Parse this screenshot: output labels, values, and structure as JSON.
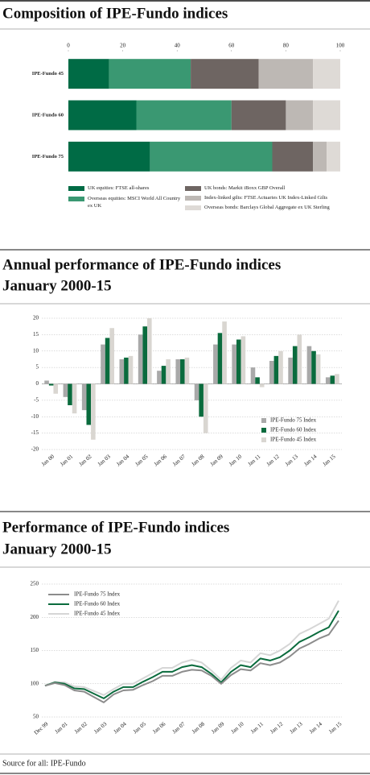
{
  "chart_data": [
    {
      "type": "bar",
      "orientation": "horizontal",
      "stacked": true,
      "title": "Composition of IPE-Fundo indices",
      "categories": [
        "IPE-Fundo 45",
        "IPE-Fundo 60",
        "IPE-Fundo 75"
      ],
      "series": [
        {
          "name": "UK equities: FTSE all-shares",
          "color": "#006b45",
          "values": [
            15,
            25,
            30
          ]
        },
        {
          "name": "Overseas equities: MSCI World All Country ex UK",
          "color": "#3a9872",
          "values": [
            30,
            35,
            45
          ]
        },
        {
          "name": "UK bonds: Markit iBoxx GBP Overall",
          "color": "#6e6562",
          "values": [
            25,
            20,
            15
          ]
        },
        {
          "name": "Index-linked gilts: FTSE Actuaries UK Index-Linked Gilts",
          "color": "#bdb8b4",
          "values": [
            20,
            10,
            5
          ]
        },
        {
          "name": "Overseas bonds: Barclays Global Aggregate ex UK Sterling",
          "color": "#dedad6",
          "values": [
            10,
            10,
            5
          ]
        }
      ],
      "xlim": [
        0,
        100
      ],
      "xticks": [
        0,
        20,
        40,
        60,
        80,
        100
      ]
    },
    {
      "type": "bar",
      "orientation": "vertical",
      "stacked": false,
      "title": "Annual performance of IPE-Fundo indices",
      "subtitle": "January 2000-15",
      "categories": [
        "Jan 00",
        "Jan 01",
        "Jan 02",
        "Jan 03",
        "Jan 04",
        "Jan 05",
        "Jan 06",
        "Jan 07",
        "Jan 08",
        "Jan 09",
        "Jan 10",
        "Jan 11",
        "Jan 12",
        "Jan 13",
        "Jan 14",
        "Jan 15"
      ],
      "series": [
        {
          "name": "IPE-Fundo 75 Index",
          "color": "#a9a9a9",
          "values": [
            1,
            -4,
            -8,
            12,
            7.5,
            15,
            4,
            7.5,
            -5,
            12,
            12,
            5,
            7,
            8,
            11.5,
            2
          ]
        },
        {
          "name": "IPE-Fundo 60 Index",
          "color": "#0a6b3d",
          "values": [
            -0.5,
            -6.5,
            -12.5,
            14,
            8,
            17.5,
            5.5,
            7.5,
            -10,
            15.5,
            13.5,
            2,
            8.5,
            11.5,
            10,
            2.5
          ]
        },
        {
          "name": "IPE-Fundo 45 Index",
          "color": "#d9d6d1",
          "values": [
            -3,
            -9,
            -17,
            17,
            8.5,
            20,
            7.5,
            8,
            -15,
            19,
            14.5,
            -1,
            10,
            15,
            9,
            3
          ]
        }
      ],
      "ylim": [
        -20,
        20
      ],
      "yticks": [
        -20,
        -15,
        -10,
        -5,
        0,
        5,
        10,
        15,
        20
      ],
      "grid": true
    },
    {
      "type": "line",
      "title": "Performance of IPE-Fundo indices",
      "subtitle": "January 2000-15",
      "categories": [
        "Dec 99",
        null,
        "Jan 01",
        null,
        "Jan 02",
        null,
        "Jan 03",
        null,
        "Jan 04",
        null,
        "Jan 05",
        null,
        "Jan 06",
        null,
        "Jan 07",
        null,
        "Jan 08",
        null,
        "Jan 09",
        null,
        "Jan 10",
        null,
        "Jan 11",
        null,
        "Jan 12",
        null,
        "Jan 13",
        null,
        "Jan 14",
        null,
        "Jan 15"
      ],
      "series": [
        {
          "name": "IPE-Fundo 75 Index",
          "color": "#8c8c8c",
          "values": [
            97,
            101,
            98,
            90,
            88,
            80,
            72,
            84,
            90,
            91,
            98,
            104,
            112,
            112,
            118,
            121,
            120,
            112,
            100,
            113,
            122,
            120,
            131,
            128,
            132,
            141,
            153,
            160,
            168,
            174,
            195
          ]
        },
        {
          "name": "IPE-Fundo 60 Index",
          "color": "#0a6b3d",
          "values": [
            97,
            102,
            100,
            93,
            92,
            85,
            78,
            88,
            95,
            95,
            103,
            110,
            118,
            118,
            125,
            128,
            125,
            115,
            102,
            118,
            128,
            125,
            138,
            135,
            140,
            150,
            163,
            170,
            178,
            185,
            210
          ]
        },
        {
          "name": "IPE-Fundo 45 Index",
          "color": "#d6d6d6",
          "values": [
            97,
            103,
            102,
            96,
            95,
            89,
            83,
            92,
            100,
            100,
            108,
            116,
            124,
            124,
            132,
            136,
            132,
            120,
            106,
            124,
            135,
            132,
            146,
            143,
            150,
            160,
            175,
            182,
            190,
            198,
            225
          ]
        }
      ],
      "ylim": [
        50,
        250
      ],
      "yticks": [
        50,
        100,
        150,
        200,
        250
      ],
      "grid": true
    }
  ],
  "source": "Source for all: IPE-Fundo"
}
